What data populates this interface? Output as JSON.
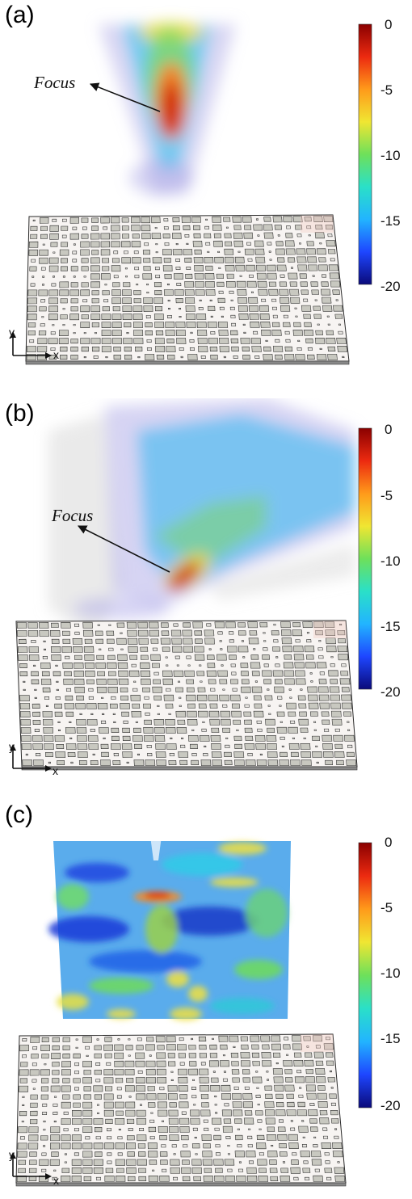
{
  "panels": [
    {
      "label": "(a)",
      "annotation": "Focus",
      "beam": "focused-cone"
    },
    {
      "label": "(b)",
      "annotation": "Focus",
      "beam": "steered-oblique"
    },
    {
      "label": "(c)",
      "annotation": "",
      "beam": "scattered-volume"
    }
  ],
  "colorbar": {
    "ticks": [
      "0",
      "-5",
      "-10",
      "-15",
      "-20"
    ],
    "colormap": [
      "#0a0a7a",
      "#1e46ff",
      "#22b4ff",
      "#2ae0c8",
      "#6ee05a",
      "#f0e632",
      "#ff9a1a",
      "#ec2a10",
      "#8a0000"
    ]
  },
  "axes": {
    "x": "x",
    "y": "y"
  },
  "colors": {
    "metasurface_cell": "#c8c8c0",
    "metasurface_edge": "#2a2a2a"
  }
}
